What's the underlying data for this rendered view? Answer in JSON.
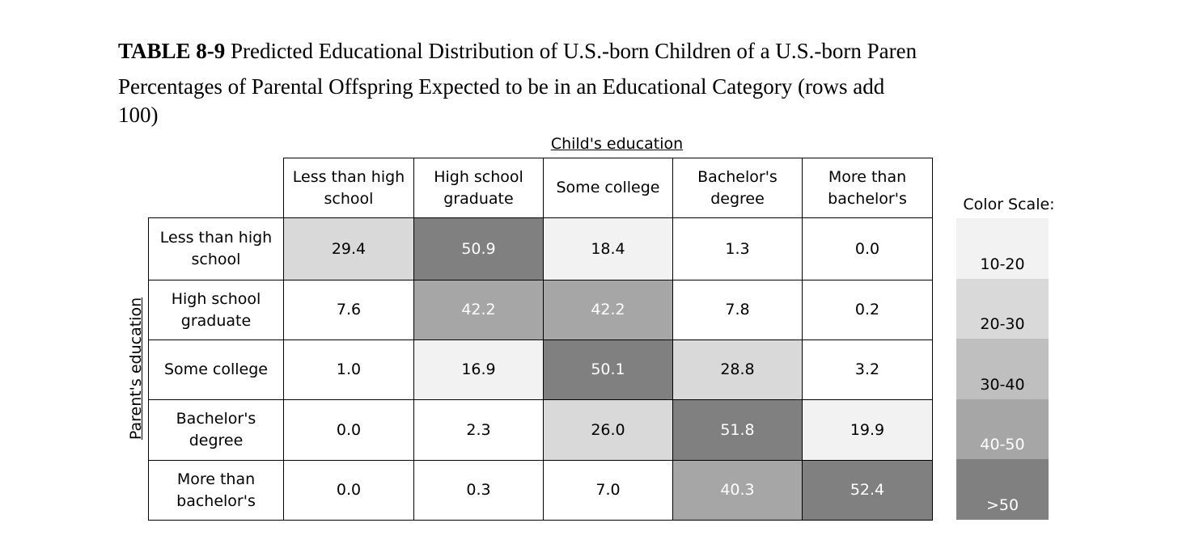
{
  "caption": {
    "label": "TABLE 8-9",
    "lines": [
      "Predicted Educational Distribution of U.S.-born Children of a U.S.-born Paren",
      "Percentages of Parental Offspring Expected to be in an Educational Category (rows add",
      "100)"
    ]
  },
  "table": {
    "column_group": "Child's education",
    "row_group": "Parent's education",
    "columns": [
      "Less than high school",
      "High school graduate",
      "Some college",
      "Bachelor's degree",
      "More than bachelor's"
    ],
    "row_labels": [
      "Less than high school",
      "High school graduate",
      "Some college",
      "Bachelor's degree",
      "More than bachelor's"
    ],
    "rows": [
      [
        "29.4",
        "50.9",
        "18.4",
        "1.3",
        "0.0"
      ],
      [
        "7.6",
        "42.2",
        "42.2",
        "7.8",
        "0.2"
      ],
      [
        "1.0",
        "16.9",
        "50.1",
        "28.8",
        "3.2"
      ],
      [
        "0.0",
        "2.3",
        "26.0",
        "51.8",
        "19.9"
      ],
      [
        "0.0",
        "0.3",
        "7.0",
        "40.3",
        "52.4"
      ]
    ]
  },
  "color_scale": {
    "title": "Color Scale:",
    "bands": [
      {
        "label": "10-20",
        "min": 10,
        "color": "#f2f2f2",
        "text": "#000000"
      },
      {
        "label": "20-30",
        "min": 20,
        "color": "#d9d9d9",
        "text": "#000000"
      },
      {
        "label": "30-40",
        "min": 30,
        "color": "#bfbfbf",
        "text": "#000000"
      },
      {
        "label": "40-50",
        "min": 40,
        "color": "#a6a6a6",
        "text": "#ffffff"
      },
      {
        "label": ">50",
        "min": 50,
        "color": "#808080",
        "text": "#ffffff"
      }
    ]
  }
}
